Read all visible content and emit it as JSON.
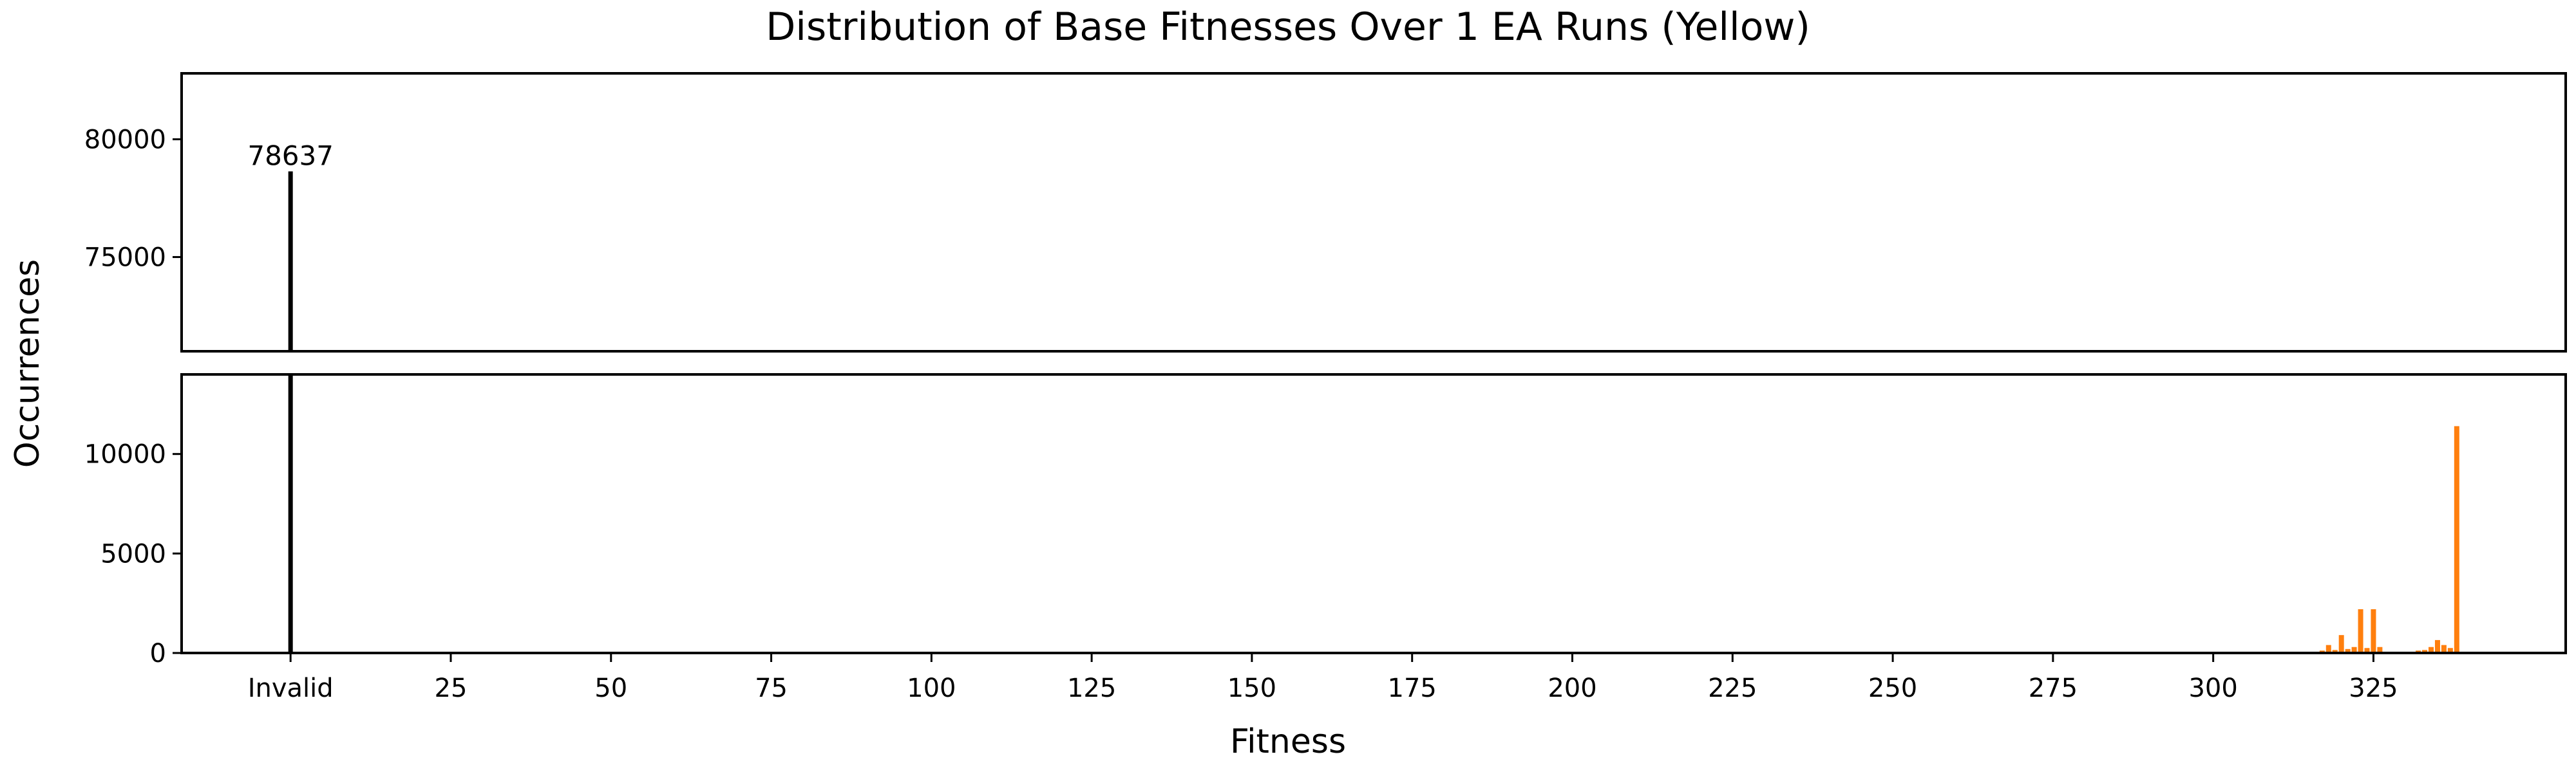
{
  "chart_data": {
    "type": "bar",
    "title": "Distribution of Base Fitnesses Over 1 EA Runs (Yellow)",
    "xlabel": "Fitness",
    "ylabel": "Occurrences",
    "layout": "broken-y-axis",
    "xlim": [
      -17,
      355
    ],
    "x_ticks": [
      {
        "value": 0,
        "label": "Invalid"
      },
      {
        "value": 25,
        "label": "25"
      },
      {
        "value": 50,
        "label": "50"
      },
      {
        "value": 75,
        "label": "75"
      },
      {
        "value": 100,
        "label": "100"
      },
      {
        "value": 125,
        "label": "125"
      },
      {
        "value": 150,
        "label": "150"
      },
      {
        "value": 175,
        "label": "175"
      },
      {
        "value": 200,
        "label": "200"
      },
      {
        "value": 225,
        "label": "225"
      },
      {
        "value": 250,
        "label": "250"
      },
      {
        "value": 275,
        "label": "275"
      },
      {
        "value": 300,
        "label": "300"
      },
      {
        "value": 325,
        "label": "325"
      }
    ],
    "upper_panel": {
      "ylim": [
        71000,
        82800
      ],
      "y_ticks": [
        {
          "value": 75000,
          "label": "75000"
        },
        {
          "value": 80000,
          "label": "80000"
        }
      ]
    },
    "lower_panel": {
      "ylim": [
        0,
        14000
      ],
      "y_ticks": [
        {
          "value": 0,
          "label": "0"
        },
        {
          "value": 5000,
          "label": "5000"
        },
        {
          "value": 10000,
          "label": "10000"
        }
      ]
    },
    "invalid_bar": {
      "x": 0,
      "value": 78637,
      "color": "#000000",
      "label": "78637"
    },
    "series": [
      {
        "color": "#ff7f0e",
        "x": [
          312,
          315,
          317,
          318,
          319,
          320,
          321,
          322,
          323,
          324,
          325,
          326,
          331,
          332,
          333,
          334,
          335,
          336,
          337,
          338
        ],
        "values": [
          40,
          60,
          120,
          400,
          150,
          900,
          200,
          300,
          2200,
          250,
          2200,
          300,
          60,
          120,
          150,
          300,
          650,
          400,
          250,
          11400
        ]
      }
    ]
  }
}
